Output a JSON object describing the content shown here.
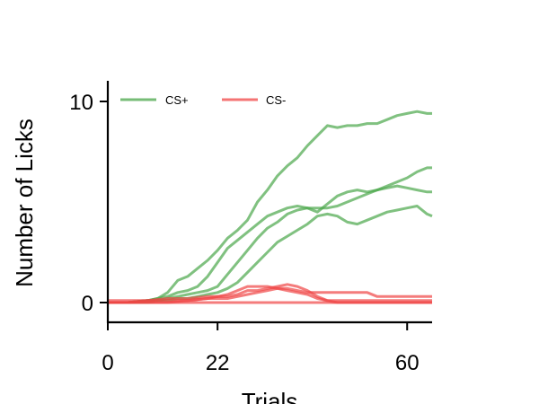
{
  "chart_data": {
    "type": "line",
    "title": "",
    "xlabel": "Trials",
    "ylabel": "Number of Licks",
    "xlim": [
      0,
      65
    ],
    "ylim": [
      -1,
      11
    ],
    "xticks": [
      0,
      22,
      60
    ],
    "yticks": [
      0,
      10
    ],
    "grid": false,
    "legend": {
      "placement": "top-left",
      "ncol": 2
    },
    "legend_entries": [
      {
        "label": "CS+",
        "color": "#4aa64a"
      },
      {
        "label": "CS-",
        "color": "#f04545"
      }
    ],
    "series": [
      {
        "group": "CS+",
        "color": "#4aa64a",
        "x": [
          0,
          4,
          8,
          10,
          12,
          14,
          16,
          18,
          20,
          22,
          24,
          26,
          28,
          30,
          32,
          34,
          36,
          38,
          40,
          42,
          44,
          46,
          48,
          50,
          52,
          54,
          56,
          58,
          60,
          62,
          64,
          65
        ],
        "y": [
          0,
          0,
          0.1,
          0.2,
          0.5,
          1.1,
          1.3,
          1.7,
          2.1,
          2.6,
          3.2,
          3.6,
          4.1,
          5.0,
          5.6,
          6.3,
          6.8,
          7.2,
          7.8,
          8.3,
          8.8,
          8.7,
          8.8,
          8.8,
          8.9,
          8.9,
          9.1,
          9.3,
          9.4,
          9.5,
          9.4,
          9.4
        ]
      },
      {
        "group": "CS+",
        "color": "#4aa64a",
        "x": [
          0,
          4,
          8,
          10,
          12,
          14,
          16,
          18,
          20,
          22,
          24,
          26,
          28,
          30,
          32,
          34,
          36,
          38,
          40,
          42,
          44,
          46,
          48,
          50,
          52,
          54,
          56,
          58,
          60,
          62,
          64,
          65
        ],
        "y": [
          0,
          0,
          0.1,
          0.2,
          0.3,
          0.5,
          0.6,
          0.8,
          1.3,
          2.0,
          2.7,
          3.1,
          3.5,
          3.9,
          4.3,
          4.5,
          4.7,
          4.8,
          4.7,
          4.5,
          4.9,
          5.3,
          5.5,
          5.6,
          5.5,
          5.6,
          5.7,
          5.8,
          5.7,
          5.6,
          5.5,
          5.5
        ]
      },
      {
        "group": "CS+",
        "color": "#4aa64a",
        "x": [
          0,
          4,
          8,
          10,
          12,
          14,
          16,
          18,
          20,
          22,
          24,
          26,
          28,
          30,
          32,
          34,
          36,
          38,
          40,
          42,
          44,
          46,
          48,
          50,
          52,
          54,
          56,
          58,
          60,
          62,
          64,
          65
        ],
        "y": [
          0,
          0,
          0.1,
          0.1,
          0.2,
          0.3,
          0.4,
          0.5,
          0.6,
          0.8,
          1.4,
          2.0,
          2.6,
          3.2,
          3.7,
          4.0,
          4.4,
          4.6,
          4.7,
          4.7,
          4.7,
          4.8,
          5.0,
          5.2,
          5.4,
          5.6,
          5.8,
          6.0,
          6.2,
          6.5,
          6.7,
          6.7
        ]
      },
      {
        "group": "CS+",
        "color": "#4aa64a",
        "x": [
          0,
          4,
          8,
          10,
          12,
          14,
          16,
          18,
          20,
          22,
          24,
          26,
          28,
          30,
          32,
          34,
          36,
          38,
          40,
          42,
          44,
          46,
          48,
          50,
          52,
          54,
          56,
          58,
          60,
          62,
          64,
          65
        ],
        "y": [
          0,
          0,
          0,
          0.1,
          0.1,
          0.2,
          0.2,
          0.3,
          0.4,
          0.5,
          0.7,
          1.0,
          1.5,
          2.0,
          2.5,
          3.0,
          3.3,
          3.6,
          3.9,
          4.3,
          4.4,
          4.3,
          4.0,
          3.9,
          4.1,
          4.3,
          4.5,
          4.6,
          4.7,
          4.8,
          4.4,
          4.3
        ]
      },
      {
        "group": "CS-",
        "color": "#f04545",
        "x": [
          0,
          4,
          8,
          12,
          16,
          20,
          22,
          24,
          26,
          28,
          30,
          32,
          34,
          36,
          38,
          40,
          42,
          44,
          46,
          48,
          50,
          52,
          54,
          56,
          58,
          60,
          62,
          64,
          65
        ],
        "y": [
          0,
          0,
          0,
          0,
          0.1,
          0.2,
          0.3,
          0.4,
          0.6,
          0.8,
          0.8,
          0.8,
          0.7,
          0.7,
          0.6,
          0.5,
          0.5,
          0.5,
          0.5,
          0.5,
          0.5,
          0.5,
          0.3,
          0.3,
          0.3,
          0.3,
          0.3,
          0.3,
          0.3
        ]
      },
      {
        "group": "CS-",
        "color": "#f04545",
        "x": [
          0,
          4,
          8,
          12,
          16,
          20,
          22,
          24,
          26,
          28,
          30,
          32,
          34,
          36,
          38,
          40,
          42,
          44,
          46,
          48,
          50,
          52,
          54,
          56,
          58,
          60,
          62,
          64,
          65
        ],
        "y": [
          0.1,
          0.1,
          0.1,
          0.2,
          0.2,
          0.3,
          0.3,
          0.3,
          0.4,
          0.6,
          0.6,
          0.7,
          0.8,
          0.9,
          0.8,
          0.6,
          0.3,
          0.1,
          0.1,
          0.1,
          0.1,
          0.1,
          0.1,
          0.1,
          0.1,
          0.1,
          0.1,
          0.1,
          0.1
        ]
      },
      {
        "group": "CS-",
        "color": "#f04545",
        "x": [
          0,
          4,
          8,
          12,
          16,
          20,
          22,
          24,
          26,
          28,
          30,
          32,
          34,
          36,
          38,
          40,
          42,
          44,
          46,
          48,
          50,
          52,
          54,
          56,
          58,
          60,
          62,
          64,
          65
        ],
        "y": [
          0,
          0,
          0.1,
          0.1,
          0.1,
          0.2,
          0.2,
          0.2,
          0.3,
          0.4,
          0.5,
          0.6,
          0.7,
          0.6,
          0.5,
          0.4,
          0.2,
          0.1,
          0,
          0,
          0,
          0,
          0,
          0,
          0,
          0,
          0,
          0,
          0
        ]
      },
      {
        "group": "CS-",
        "color": "#f04545",
        "x": [
          0,
          10,
          20,
          30,
          40,
          50,
          60,
          65
        ],
        "y": [
          0,
          0,
          0,
          0,
          0,
          0,
          0,
          0
        ]
      }
    ]
  }
}
